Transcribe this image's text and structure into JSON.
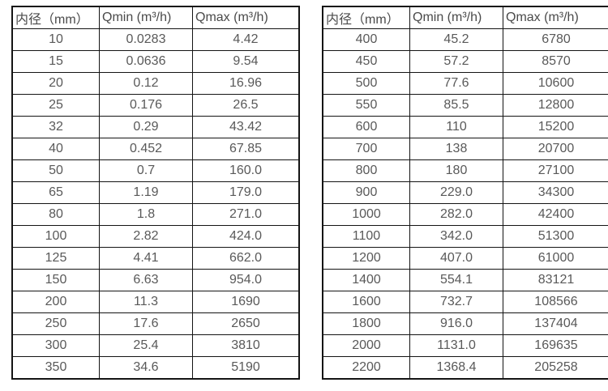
{
  "colors": {
    "border": "#141414",
    "text": "#595959",
    "header_text": "#4a4a4a",
    "background": "#ffffff"
  },
  "tables": [
    {
      "name": "small-diameter-flow-rates",
      "headers": [
        "内径（mm）",
        "Qmin (m³/h)",
        "Qmax (m³/h)"
      ],
      "rows": [
        [
          "10",
          "0.0283",
          "4.42"
        ],
        [
          "15",
          "0.0636",
          "9.54"
        ],
        [
          "20",
          "0.12",
          "16.96"
        ],
        [
          "25",
          "0.176",
          "26.5"
        ],
        [
          "32",
          "0.29",
          "43.42"
        ],
        [
          "40",
          "0.452",
          "67.85"
        ],
        [
          "50",
          "0.7",
          "160.0"
        ],
        [
          "65",
          "1.19",
          "179.0"
        ],
        [
          "80",
          "1.8",
          "271.0"
        ],
        [
          "100",
          "2.82",
          "424.0"
        ],
        [
          "125",
          "4.41",
          "662.0"
        ],
        [
          "150",
          "6.63",
          "954.0"
        ],
        [
          "200",
          "11.3",
          "1690"
        ],
        [
          "250",
          "17.6",
          "2650"
        ],
        [
          "300",
          "25.4",
          "3810"
        ],
        [
          "350",
          "34.6",
          "5190"
        ]
      ]
    },
    {
      "name": "large-diameter-flow-rates",
      "headers": [
        "内径（mm）",
        "Qmin (m³/h)",
        "Qmax (m³/h)"
      ],
      "rows": [
        [
          "400",
          "45.2",
          "6780"
        ],
        [
          "450",
          "57.2",
          "8570"
        ],
        [
          "500",
          "77.6",
          "10600"
        ],
        [
          "550",
          "85.5",
          "12800"
        ],
        [
          "600",
          "110",
          "15200"
        ],
        [
          "700",
          "138",
          "20700"
        ],
        [
          "800",
          "180",
          "27100"
        ],
        [
          "900",
          "229.0",
          "34300"
        ],
        [
          "1000",
          "282.0",
          "42400"
        ],
        [
          "1100",
          "342.0",
          "51300"
        ],
        [
          "1200",
          "407.0",
          "61000"
        ],
        [
          "1400",
          "554.1",
          "83121"
        ],
        [
          "1600",
          "732.7",
          "108566"
        ],
        [
          "1800",
          "916.0",
          "137404"
        ],
        [
          "2000",
          "1131.0",
          "169635"
        ],
        [
          "2200",
          "1368.4",
          "205258"
        ]
      ]
    }
  ]
}
